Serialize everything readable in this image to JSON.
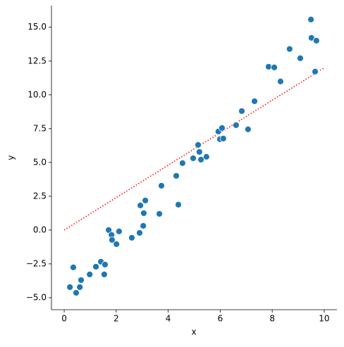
{
  "chart_data": {
    "type": "scatter",
    "xlabel": "x",
    "ylabel": "y",
    "x": [
      0.22,
      0.35,
      0.46,
      0.6,
      0.65,
      0.98,
      1.22,
      1.41,
      1.57,
      1.54,
      1.71,
      1.82,
      1.84,
      2.01,
      2.11,
      2.6,
      2.9,
      2.93,
      3.06,
      3.04,
      3.12,
      3.66,
      3.74,
      4.31,
      4.39,
      4.55,
      4.96,
      5.15,
      5.2,
      5.26,
      5.47,
      5.93,
      5.99,
      6.07,
      6.12,
      6.61,
      6.83,
      7.07,
      7.32,
      7.86,
      8.08,
      8.32,
      8.67,
      9.08,
      9.49,
      9.51,
      9.7,
      9.65
    ],
    "y": [
      -4.22,
      -2.76,
      -4.64,
      -4.22,
      -3.7,
      -3.28,
      -2.71,
      -2.34,
      -2.55,
      -3.28,
      0.0,
      -0.36,
      -0.73,
      -1.04,
      -0.1,
      -0.57,
      -0.21,
      1.82,
      1.25,
      0.31,
      2.19,
      1.2,
      3.28,
      4.01,
      1.88,
      4.95,
      5.31,
      6.3,
      5.78,
      5.21,
      5.42,
      7.29,
      6.72,
      7.55,
      6.77,
      7.76,
      8.8,
      7.45,
      9.53,
      12.08,
      12.03,
      10.99,
      13.39,
      12.71,
      15.57,
      14.22,
      14.01,
      11.72
    ],
    "color": "#1f77b4",
    "line": {
      "x": [
        0,
        10
      ],
      "y": [
        0,
        12
      ],
      "color": "red"
    },
    "xlim": [
      -0.49,
      10.49
    ],
    "ylim": [
      -5.89,
      16.6
    ],
    "xticks": [
      0,
      2,
      4,
      6,
      8,
      10
    ],
    "yticks": [
      {
        "value": -5,
        "label": "−5.0"
      },
      {
        "value": -2.5,
        "label": "−2.5"
      },
      {
        "value": 0,
        "label": "0.0"
      },
      {
        "value": 2.5,
        "label": "2.5"
      },
      {
        "value": 5,
        "label": "5.0"
      },
      {
        "value": 7.5,
        "label": "7.5"
      },
      {
        "value": 10,
        "label": "10.0"
      },
      {
        "value": 12.5,
        "label": "12.5"
      },
      {
        "value": 15,
        "label": "15.0"
      }
    ]
  }
}
